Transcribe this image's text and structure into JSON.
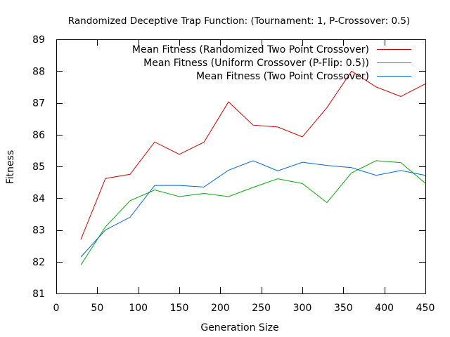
{
  "chart_data": {
    "type": "line",
    "title": "Randomized Deceptive Trap Function:  (Tournament: 1, P-Crossover: 0.5)",
    "xlabel": "Generation Size",
    "ylabel": "Fitness",
    "xlim": [
      0,
      450
    ],
    "ylim": [
      81,
      89
    ],
    "xticks": [
      0,
      50,
      100,
      150,
      200,
      250,
      300,
      350,
      400,
      450
    ],
    "yticks": [
      81,
      82,
      83,
      84,
      85,
      86,
      87,
      88,
      89
    ],
    "grid": false,
    "legend_position": "top-right",
    "x": [
      30,
      60,
      90,
      120,
      150,
      180,
      210,
      240,
      270,
      300,
      330,
      360,
      390,
      420,
      450
    ],
    "series": [
      {
        "name": "Mean Fitness (Randomized Two Point Crossover)",
        "color": "#cc0000",
        "values": [
          82.7,
          84.62,
          84.75,
          85.77,
          85.38,
          85.76,
          87.03,
          86.3,
          86.24,
          85.93,
          86.85,
          88.0,
          87.5,
          87.2,
          87.6
        ]
      },
      {
        "name": "Mean Fitness (Uniform Crossover (P-Flip: 0.5))",
        "color": "#00aa00",
        "values": [
          81.9,
          83.1,
          83.92,
          84.26,
          84.05,
          84.15,
          84.05,
          84.34,
          84.61,
          84.46,
          83.86,
          84.8,
          85.18,
          85.12,
          84.47
        ]
      },
      {
        "name": "Mean Fitness (Two Point Crossover)",
        "color": "#0066cc",
        "values": [
          82.15,
          83.0,
          83.4,
          84.4,
          84.4,
          84.35,
          84.88,
          85.18,
          84.86,
          85.13,
          85.03,
          84.96,
          84.72,
          84.87,
          84.72
        ]
      }
    ]
  }
}
